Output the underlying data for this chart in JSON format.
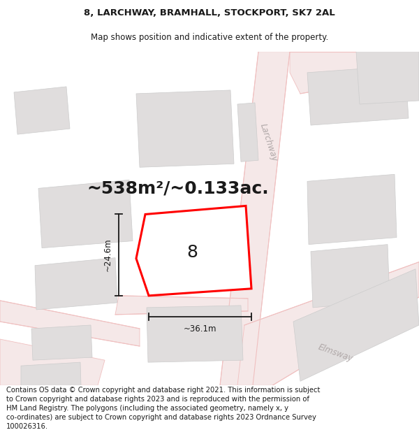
{
  "title_line1": "8, LARCHWAY, BRAMHALL, STOCKPORT, SK7 2AL",
  "title_line2": "Map shows position and indicative extent of the property.",
  "area_text": "~538m²/~0.133ac.",
  "dim_height": "~24.6m",
  "dim_width": "~36.1m",
  "number_label": "8",
  "footer_text": "Contains OS data © Crown copyright and database right 2021. This information is subject to Crown copyright and database rights 2023 and is reproduced with the permission of HM Land Registry. The polygons (including the associated geometry, namely x, y co-ordinates) are subject to Crown copyright and database rights 2023 Ordnance Survey 100026316.",
  "bg_color": "#ffffff",
  "map_bg": "#f7f5f5",
  "road_fill": "#f5e8e8",
  "road_line": "#f0c0c0",
  "building_fill": "#e0dddd",
  "building_edge": "#cccccc",
  "red_color": "#ff0000",
  "black_color": "#1a1a1a",
  "gray_road_text": "#b0a8a8",
  "title_fontsize": 9.5,
  "subtitle_fontsize": 8.5,
  "area_fontsize": 18,
  "dim_fontsize": 8.5,
  "footer_fontsize": 7.2,
  "number_fontsize": 18
}
